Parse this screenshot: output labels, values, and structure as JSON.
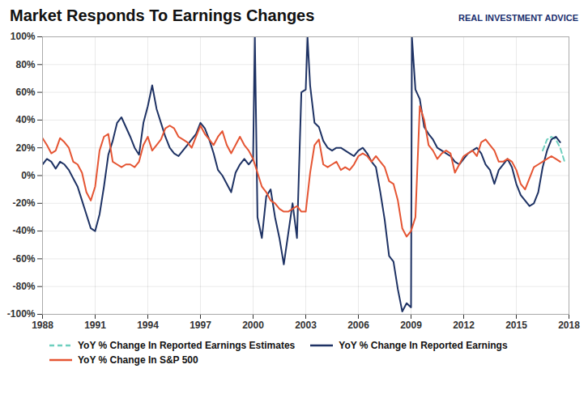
{
  "chart_data": {
    "type": "line",
    "title": "Market Responds To Earnings Changes",
    "annotations": [
      "REAL INVESTMENT ADVICE"
    ],
    "xlim": [
      1988,
      2018
    ],
    "xticks": [
      1988,
      1991,
      1994,
      1997,
      2000,
      2003,
      2006,
      2009,
      2012,
      2015,
      2018
    ],
    "ylim": [
      -1.0,
      1.0
    ],
    "yticks": [
      {
        "value": -1.0,
        "label": "-100%"
      },
      {
        "value": -0.8,
        "label": "-80%"
      },
      {
        "value": -0.6,
        "label": "-60%"
      },
      {
        "value": -0.4,
        "label": "-40%"
      },
      {
        "value": -0.2,
        "label": "-20%"
      },
      {
        "value": 0,
        "label": "0%"
      },
      {
        "value": 0.2,
        "label": "20%"
      },
      {
        "value": 0.4,
        "label": "40%"
      },
      {
        "value": 0.6,
        "label": "60%"
      },
      {
        "value": 0.8,
        "label": "80%"
      },
      {
        "value": 1.0,
        "label": "100%"
      }
    ],
    "grid": true,
    "legend": "bottom",
    "series": [
      {
        "name": "YoY % Change In Reported Earnings Estimates",
        "color": "#6ecfbe",
        "line_style": "dashed",
        "x": [
          2016.5,
          2016.75,
          2017.0,
          2017.25,
          2017.5,
          2017.75
        ],
        "values": [
          0.18,
          0.26,
          0.28,
          0.26,
          0.2,
          0.1
        ]
      },
      {
        "name": "YoY % Change In Reported Earnings",
        "color": "#1e3264",
        "line_style": "solid",
        "x": [
          1988.0,
          1988.25,
          1988.5,
          1988.75,
          1989.0,
          1989.25,
          1989.5,
          1989.75,
          1990.0,
          1990.25,
          1990.5,
          1990.75,
          1991.0,
          1991.25,
          1991.5,
          1991.75,
          1992.0,
          1992.25,
          1992.5,
          1992.75,
          1993.0,
          1993.25,
          1993.5,
          1993.75,
          1994.0,
          1994.25,
          1994.5,
          1994.75,
          1995.0,
          1995.25,
          1995.5,
          1995.75,
          1996.0,
          1996.25,
          1996.5,
          1996.75,
          1997.0,
          1997.25,
          1997.5,
          1997.75,
          1998.0,
          1998.25,
          1998.5,
          1998.75,
          1999.0,
          1999.25,
          1999.5,
          1999.75,
          2000.0,
          2000.1,
          2000.25,
          2000.5,
          2000.75,
          2001.0,
          2001.25,
          2001.5,
          2001.75,
          2002.0,
          2002.25,
          2002.5,
          2002.75,
          2003.0,
          2003.1,
          2003.25,
          2003.5,
          2003.75,
          2004.0,
          2004.25,
          2004.5,
          2004.75,
          2005.0,
          2005.25,
          2005.5,
          2005.75,
          2006.0,
          2006.25,
          2006.5,
          2006.75,
          2007.0,
          2007.25,
          2007.5,
          2007.75,
          2008.0,
          2008.25,
          2008.5,
          2008.75,
          2009.0,
          2009.05,
          2009.25,
          2009.5,
          2009.75,
          2010.0,
          2010.25,
          2010.5,
          2010.75,
          2011.0,
          2011.25,
          2011.5,
          2011.75,
          2012.0,
          2012.25,
          2012.5,
          2012.75,
          2013.0,
          2013.25,
          2013.5,
          2013.75,
          2014.0,
          2014.25,
          2014.5,
          2014.75,
          2015.0,
          2015.25,
          2015.5,
          2015.75,
          2016.0,
          2016.25,
          2016.5,
          2016.75,
          2017.0,
          2017.25,
          2017.5
        ],
        "values": [
          0.08,
          0.12,
          0.1,
          0.05,
          0.1,
          0.08,
          0.04,
          -0.02,
          -0.08,
          -0.18,
          -0.28,
          -0.38,
          -0.4,
          -0.28,
          -0.08,
          0.15,
          0.25,
          0.38,
          0.42,
          0.35,
          0.28,
          0.2,
          0.15,
          0.38,
          0.5,
          0.65,
          0.48,
          0.38,
          0.28,
          0.2,
          0.16,
          0.14,
          0.18,
          0.22,
          0.26,
          0.3,
          0.38,
          0.34,
          0.26,
          0.16,
          0.04,
          0.0,
          -0.06,
          -0.12,
          0.02,
          0.08,
          0.12,
          0.08,
          0.12,
          1.0,
          -0.3,
          -0.45,
          -0.15,
          -0.1,
          -0.3,
          -0.45,
          -0.64,
          -0.42,
          -0.2,
          -0.45,
          0.6,
          0.62,
          1.0,
          0.65,
          0.38,
          0.35,
          0.25,
          0.2,
          0.18,
          0.2,
          0.2,
          0.18,
          0.16,
          0.14,
          0.18,
          0.2,
          0.16,
          0.1,
          0.06,
          -0.12,
          -0.32,
          -0.58,
          -0.62,
          -0.82,
          -0.98,
          -0.92,
          -0.95,
          1.0,
          0.62,
          0.55,
          0.35,
          0.3,
          0.26,
          0.2,
          0.18,
          0.16,
          0.14,
          0.1,
          0.08,
          0.12,
          0.16,
          0.18,
          0.2,
          0.16,
          0.08,
          0.04,
          -0.06,
          0.04,
          0.08,
          0.12,
          0.06,
          -0.06,
          -0.14,
          -0.18,
          -0.22,
          -0.2,
          -0.12,
          0.06,
          0.18,
          0.26,
          0.28,
          0.24
        ]
      },
      {
        "name": "YoY % Change In S&P 500",
        "color": "#e55533",
        "line_style": "solid",
        "x": [
          1988.0,
          1988.25,
          1988.5,
          1988.75,
          1989.0,
          1989.25,
          1989.5,
          1989.75,
          1990.0,
          1990.25,
          1990.5,
          1990.75,
          1991.0,
          1991.25,
          1991.5,
          1991.75,
          1992.0,
          1992.25,
          1992.5,
          1992.75,
          1993.0,
          1993.25,
          1993.5,
          1993.75,
          1994.0,
          1994.25,
          1994.5,
          1994.75,
          1995.0,
          1995.25,
          1995.5,
          1995.75,
          1996.0,
          1996.25,
          1996.5,
          1996.75,
          1997.0,
          1997.25,
          1997.5,
          1997.75,
          1998.0,
          1998.25,
          1998.5,
          1998.75,
          1999.0,
          1999.25,
          1999.5,
          1999.75,
          2000.0,
          2000.25,
          2000.5,
          2000.75,
          2001.0,
          2001.25,
          2001.5,
          2001.75,
          2002.0,
          2002.25,
          2002.5,
          2002.75,
          2003.0,
          2003.25,
          2003.5,
          2003.75,
          2004.0,
          2004.25,
          2004.5,
          2004.75,
          2005.0,
          2005.25,
          2005.5,
          2005.75,
          2006.0,
          2006.25,
          2006.5,
          2006.75,
          2007.0,
          2007.25,
          2007.5,
          2007.75,
          2008.0,
          2008.25,
          2008.5,
          2008.75,
          2009.0,
          2009.25,
          2009.5,
          2009.75,
          2010.0,
          2010.25,
          2010.5,
          2010.75,
          2011.0,
          2011.25,
          2011.5,
          2011.75,
          2012.0,
          2012.25,
          2012.5,
          2012.75,
          2013.0,
          2013.25,
          2013.5,
          2013.75,
          2014.0,
          2014.25,
          2014.5,
          2014.75,
          2015.0,
          2015.25,
          2015.5,
          2015.75,
          2016.0,
          2016.25,
          2016.5,
          2016.75,
          2017.0,
          2017.25,
          2017.5
        ],
        "values": [
          0.27,
          0.22,
          0.16,
          0.18,
          0.27,
          0.24,
          0.2,
          0.1,
          0.08,
          0.02,
          -0.12,
          -0.18,
          -0.08,
          0.18,
          0.28,
          0.3,
          0.1,
          0.08,
          0.06,
          0.08,
          0.08,
          0.06,
          0.1,
          0.22,
          0.28,
          0.18,
          0.22,
          0.26,
          0.34,
          0.36,
          0.34,
          0.28,
          0.26,
          0.24,
          0.2,
          0.28,
          0.36,
          0.3,
          0.26,
          0.22,
          0.28,
          0.32,
          0.22,
          0.16,
          0.22,
          0.28,
          0.22,
          0.18,
          0.12,
          0.02,
          -0.08,
          -0.12,
          -0.18,
          -0.2,
          -0.24,
          -0.26,
          -0.26,
          -0.24,
          -0.22,
          -0.26,
          -0.26,
          0.02,
          0.22,
          0.26,
          0.08,
          0.06,
          0.08,
          0.1,
          0.04,
          0.06,
          0.04,
          0.08,
          0.14,
          0.16,
          0.14,
          0.1,
          0.14,
          0.1,
          0.06,
          -0.04,
          -0.06,
          -0.18,
          -0.38,
          -0.44,
          -0.4,
          -0.3,
          0.5,
          0.4,
          0.22,
          0.18,
          0.12,
          0.16,
          0.18,
          0.16,
          0.02,
          0.08,
          0.14,
          0.16,
          0.18,
          0.14,
          0.24,
          0.26,
          0.22,
          0.18,
          0.1,
          0.1,
          0.12,
          0.1,
          0.04,
          -0.06,
          -0.1,
          -0.02,
          0.06,
          0.08,
          0.1,
          0.12,
          0.14,
          0.12,
          0.1
        ]
      }
    ]
  }
}
